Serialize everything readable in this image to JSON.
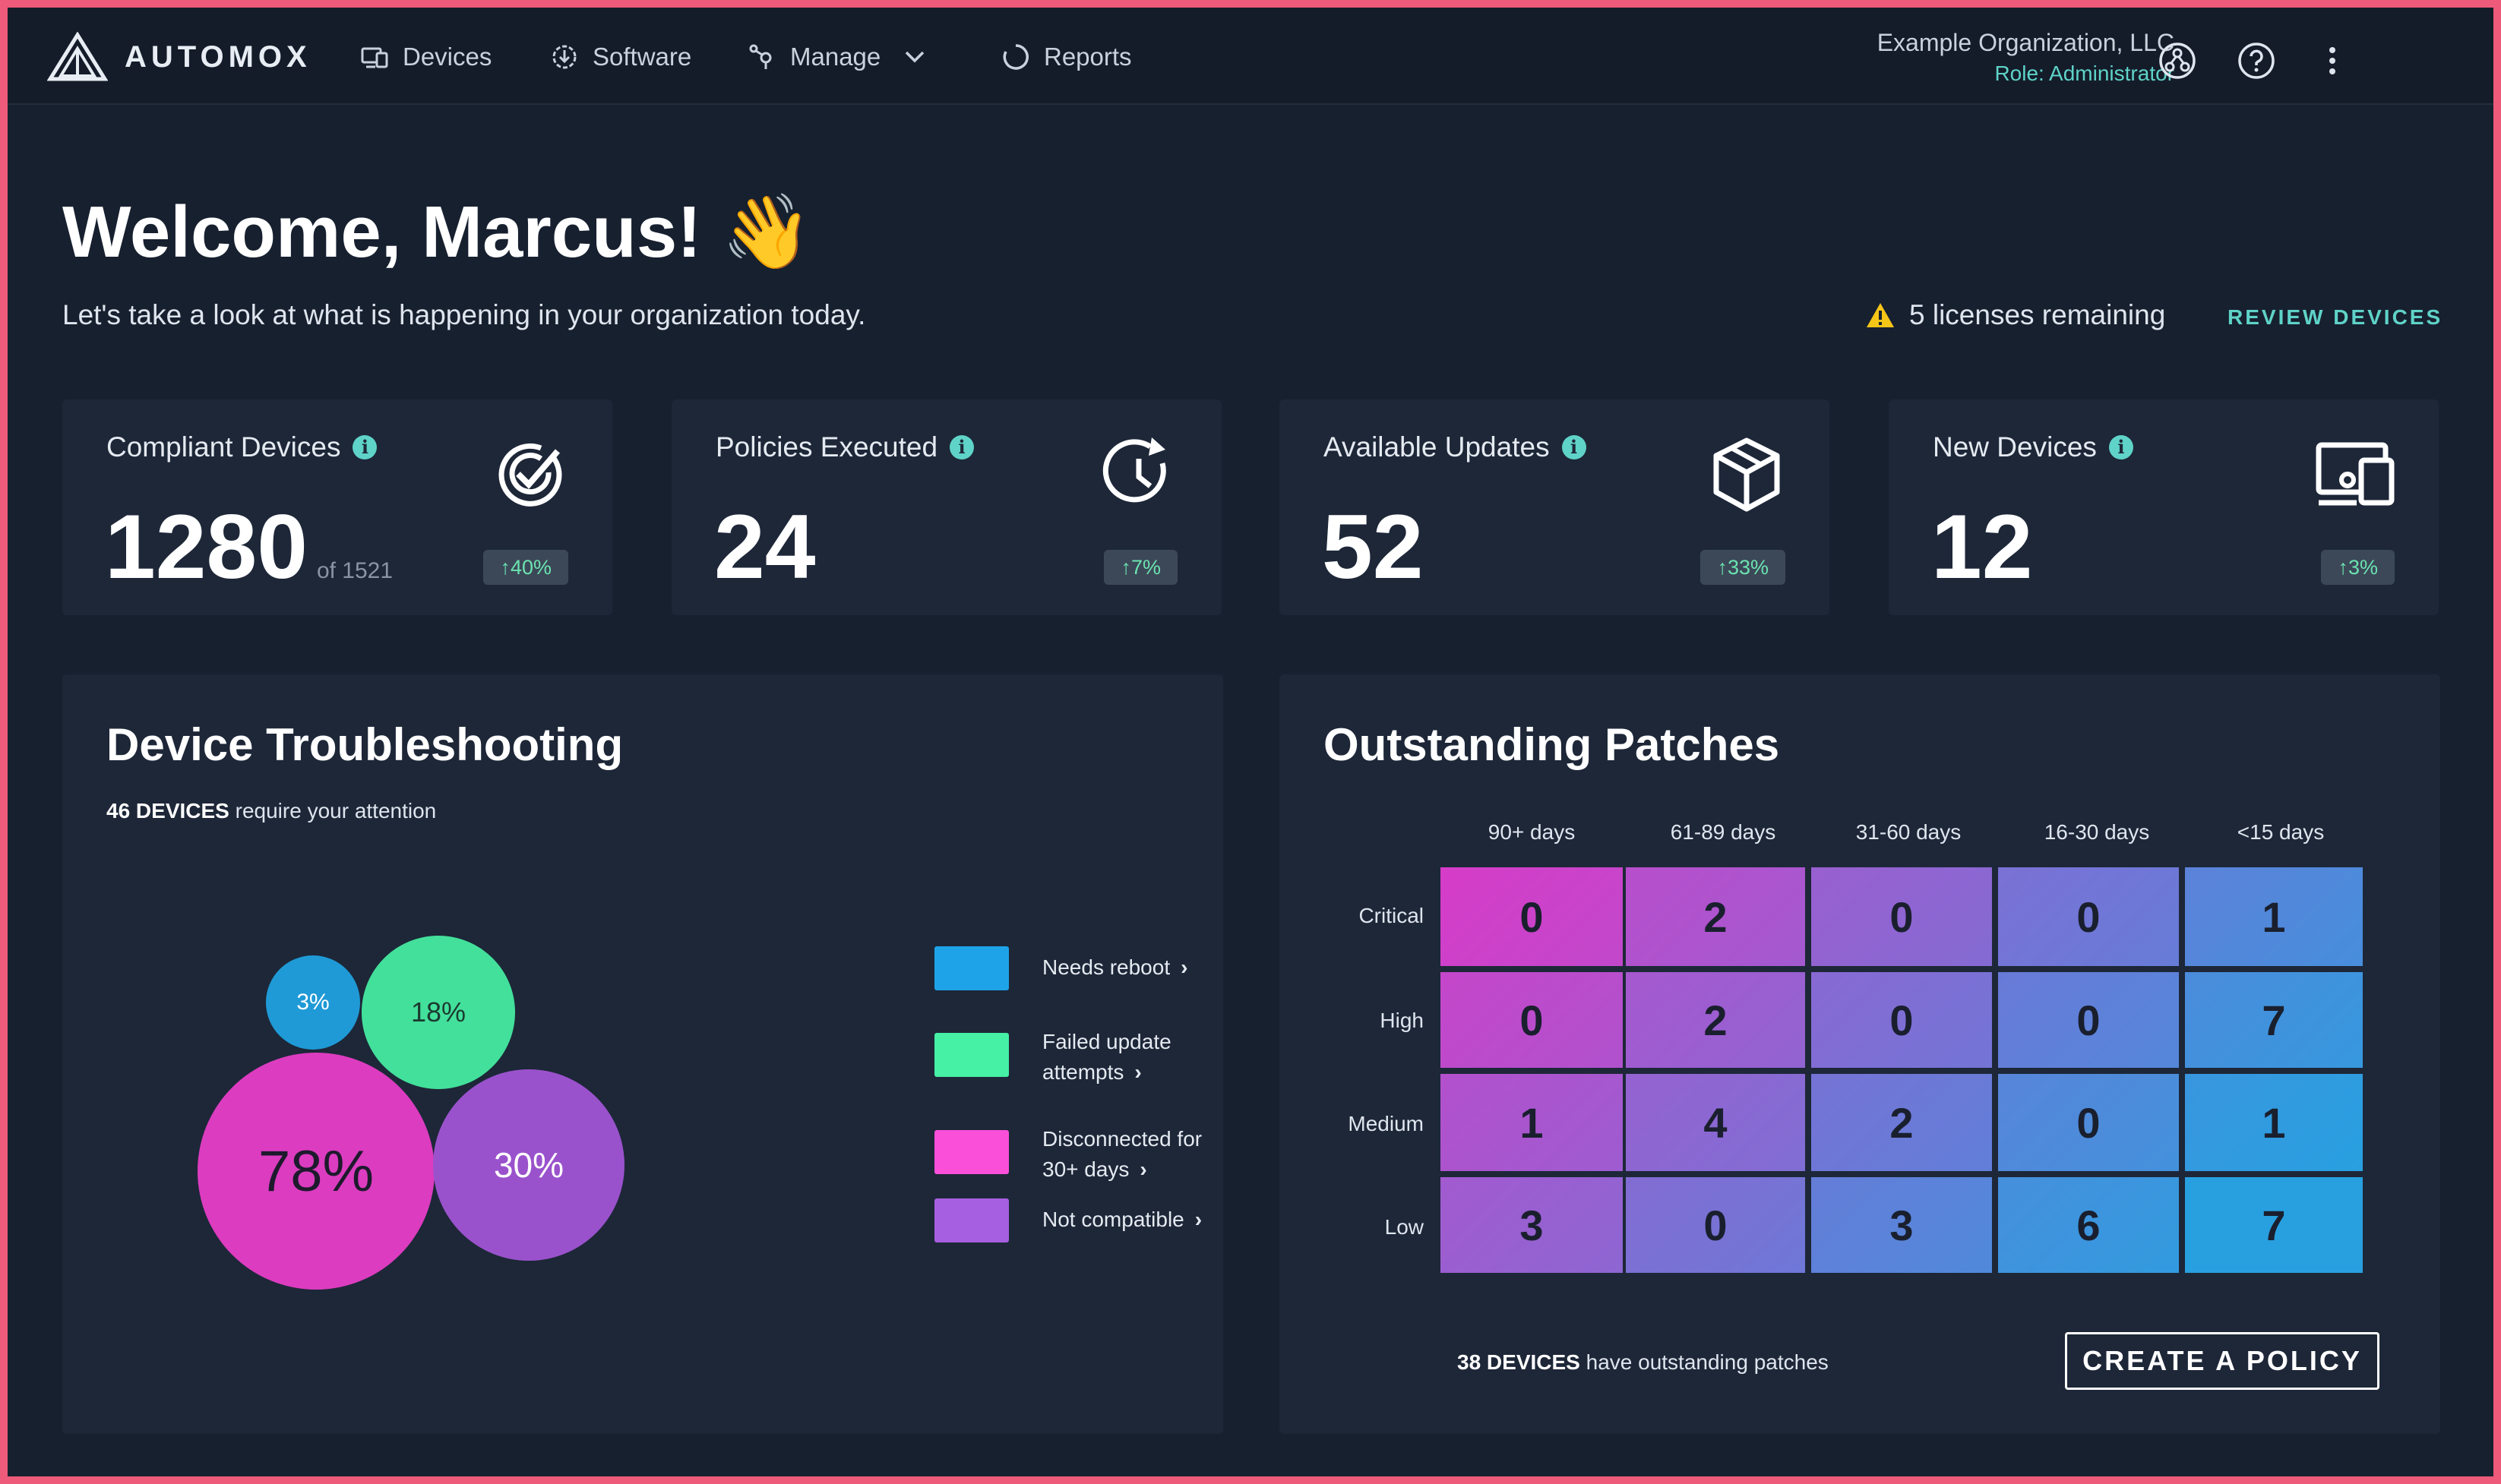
{
  "brand": {
    "name": "AUTOMOX"
  },
  "nav": {
    "items": [
      {
        "label": "Devices",
        "icon": "devices-icon"
      },
      {
        "label": "Software",
        "icon": "software-icon"
      },
      {
        "label": "Manage",
        "icon": "manage-icon"
      },
      {
        "label": "Reports",
        "icon": "reports-icon"
      }
    ]
  },
  "org": {
    "name": "Example Organization, LLC",
    "role": "Role: Administrator"
  },
  "welcome": {
    "title": "Welcome, Marcus! 👋",
    "subtitle": "Let's take a look at what is happening in your organization today.",
    "licenses": "5 licenses remaining",
    "review_label": "REVIEW DEVICES"
  },
  "stats": [
    {
      "label": "Compliant Devices",
      "value": "1280",
      "of": "of 1521",
      "trend": "↑40%",
      "icon": "check-circle-icon"
    },
    {
      "label": "Policies Executed",
      "value": "24",
      "of": "",
      "trend": "↑7%",
      "icon": "clock-refresh-icon"
    },
    {
      "label": "Available Updates",
      "value": "52",
      "of": "",
      "trend": "↑33%",
      "icon": "package-icon"
    },
    {
      "label": "New Devices",
      "value": "12",
      "of": "",
      "trend": "↑3%",
      "icon": "new-devices-icon"
    }
  ],
  "troubleshooting": {
    "title": "Device Troubleshooting",
    "count": "46 DEVICES",
    "count_suffix": "require your attention",
    "bubbles": [
      {
        "label": "3%",
        "color": "#1f9ad6"
      },
      {
        "label": "18%",
        "color": "#43e09b"
      },
      {
        "label": "78%",
        "color": "#dc3cc0"
      },
      {
        "label": "30%",
        "color": "#9a52cc"
      }
    ],
    "legend": [
      {
        "label": "Needs reboot",
        "color": "#1ea3e8"
      },
      {
        "label": "Failed update attempts",
        "color": "#46f0a4"
      },
      {
        "label": "Disconnected for 30+ days",
        "color": "#f94fd9"
      },
      {
        "label": "Not compatible",
        "color": "#a65fe0"
      }
    ]
  },
  "patches": {
    "title": "Outstanding Patches",
    "columns": [
      "90+ days",
      "61-89 days",
      "31-60 days",
      "16-30 days",
      "<15 days"
    ],
    "rows": [
      "Critical",
      "High",
      "Medium",
      "Low"
    ],
    "values": [
      [
        "0",
        "2",
        "0",
        "0",
        "1"
      ],
      [
        "0",
        "2",
        "0",
        "0",
        "7"
      ],
      [
        "1",
        "4",
        "2",
        "0",
        "1"
      ],
      [
        "3",
        "0",
        "3",
        "6",
        "7"
      ]
    ],
    "footer_count": "38 DEVICES",
    "footer_suffix": "have outstanding patches",
    "button_label": "CREATE A POLICY"
  }
}
